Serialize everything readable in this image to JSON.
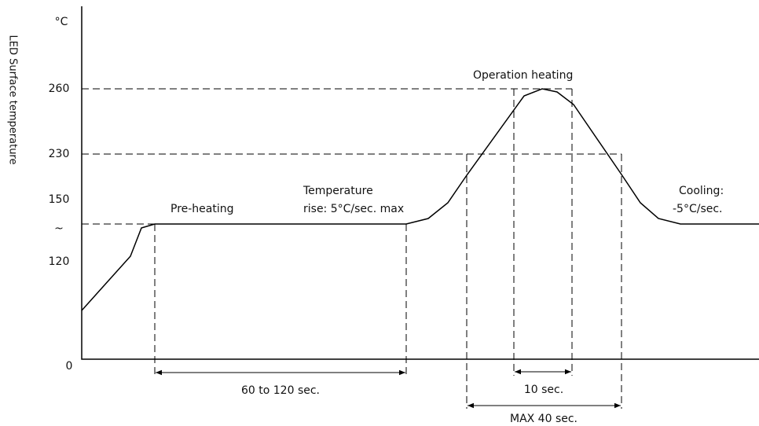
{
  "y_axis": {
    "title": "LED Surface temperature",
    "unit": "°C",
    "labels": [
      "260",
      "230",
      "150",
      "~",
      "120",
      "0"
    ]
  },
  "phases": {
    "preheating": "Pre-heating",
    "rise": [
      "Temperature",
      "rise: 5°C/sec. max"
    ],
    "operation": "Operation heating",
    "cooling": [
      "Cooling:",
      "-5°C/sec."
    ]
  },
  "durations": {
    "preheat": "60 to 120 sec.",
    "peak": "10 sec.",
    "max": "MAX 40 sec."
  }
}
